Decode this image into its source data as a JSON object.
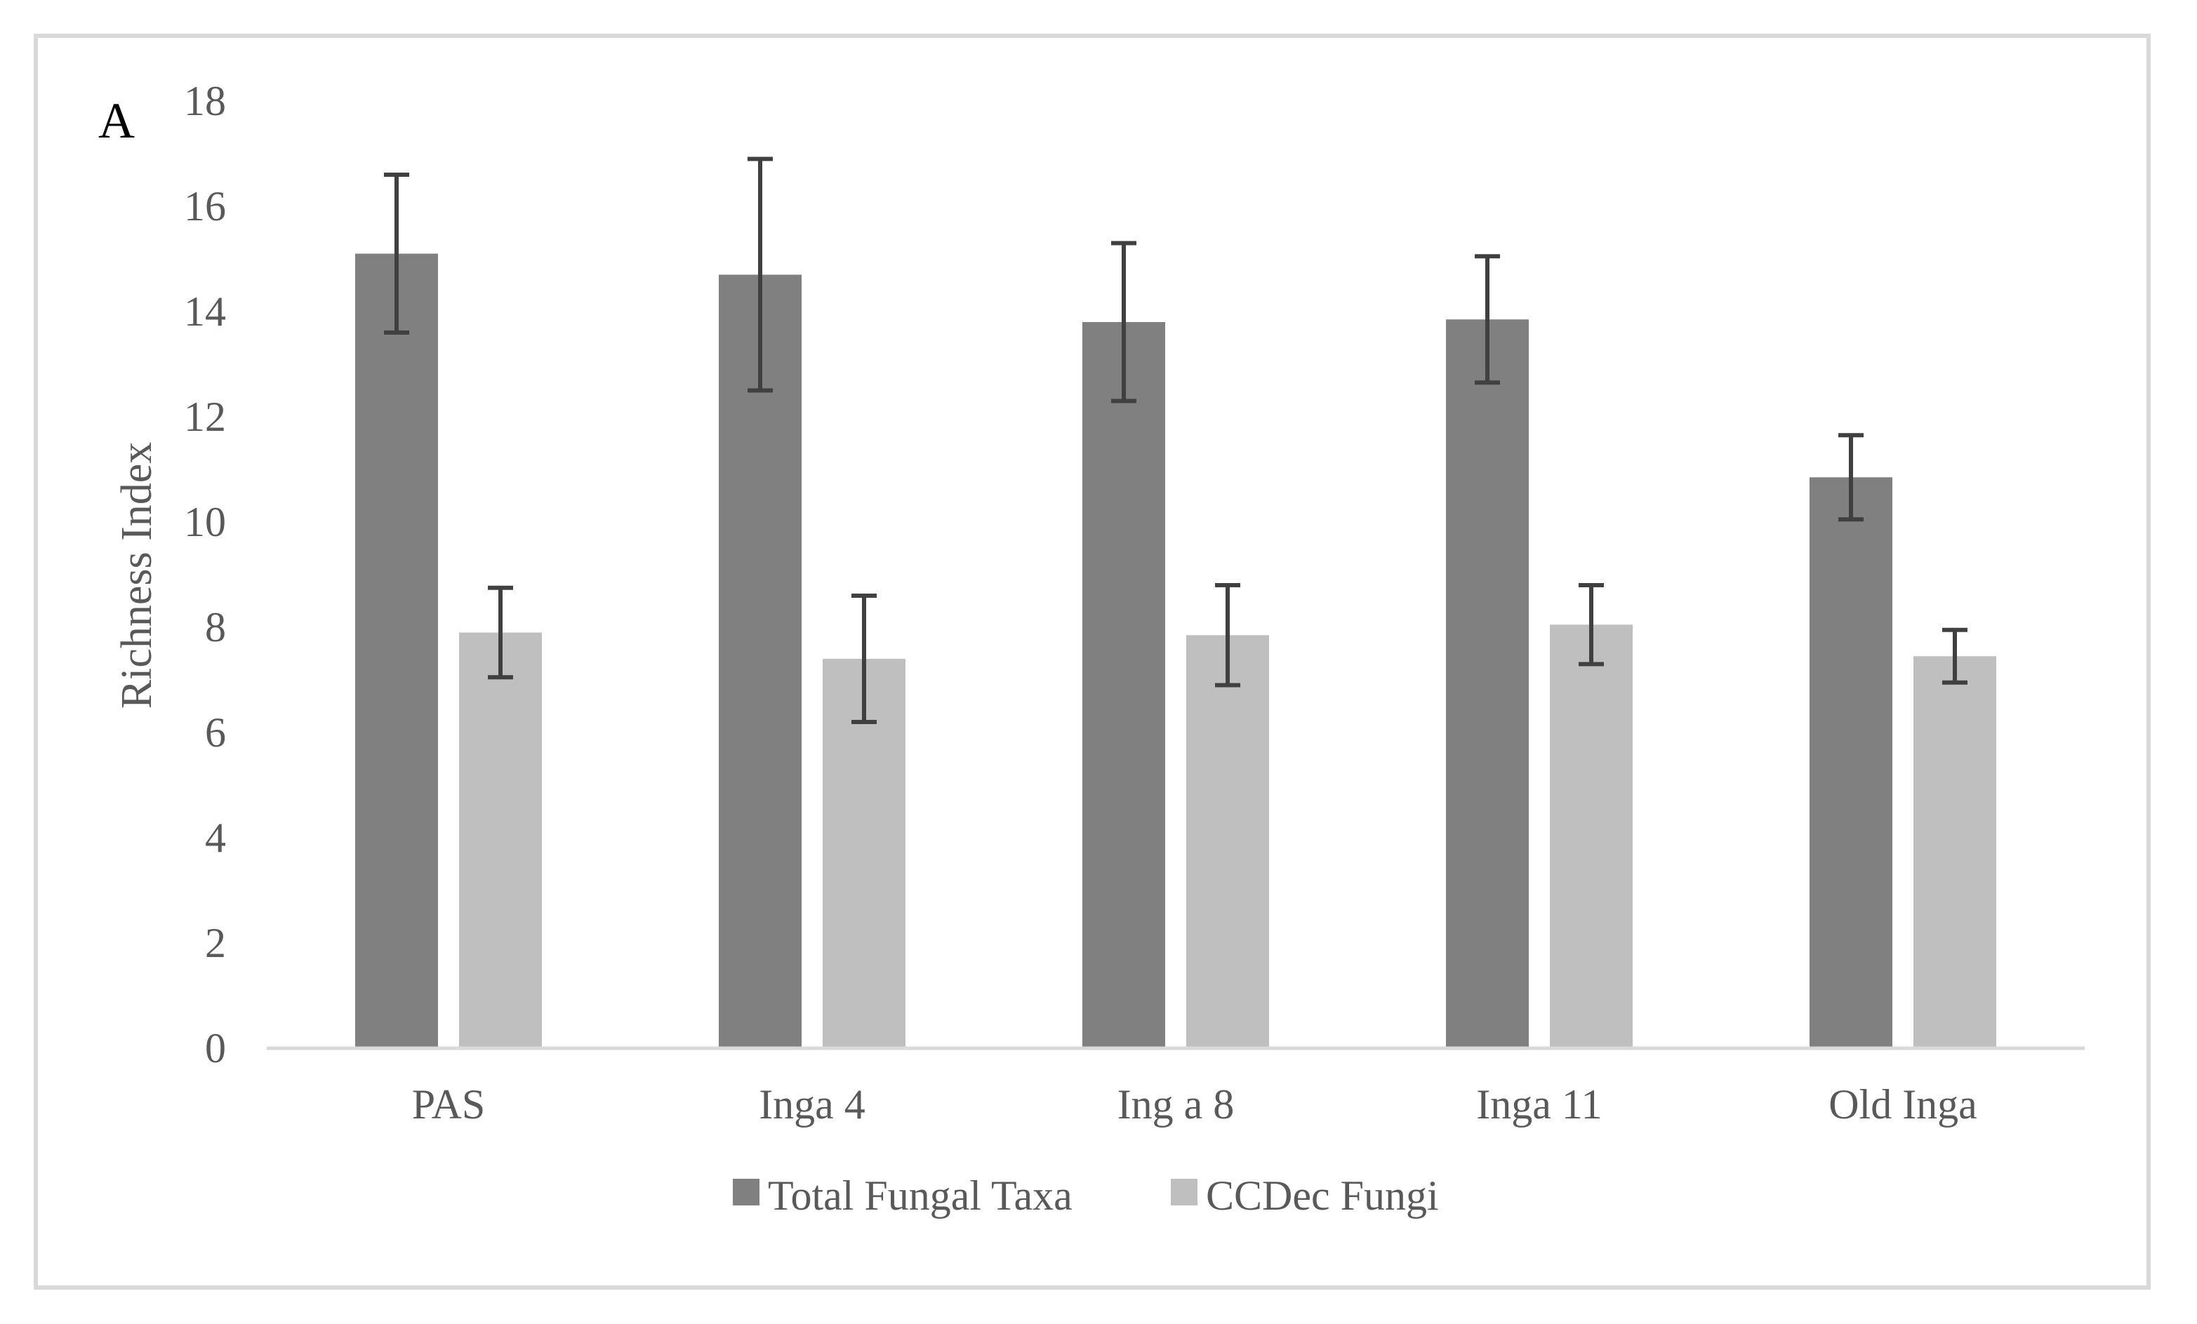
{
  "chart_data": {
    "type": "bar",
    "panel_label": "A",
    "ylabel": "Richness Index",
    "ylim": [
      0,
      18
    ],
    "yticks": [
      0,
      2,
      4,
      6,
      8,
      10,
      12,
      14,
      16,
      18
    ],
    "categories": [
      "PAS",
      "Inga 4",
      "Ing a 8",
      "Inga 11",
      "Old Inga"
    ],
    "series": [
      {
        "name": "Total Fungal Taxa",
        "color": "#808080",
        "values": [
          15.1,
          14.7,
          13.8,
          13.85,
          10.85
        ],
        "errors": [
          1.5,
          2.2,
          1.5,
          1.2,
          0.8
        ]
      },
      {
        "name": "CCDec Fungi",
        "color": "#bfbfbf",
        "values": [
          7.9,
          7.4,
          7.85,
          8.05,
          7.45
        ],
        "errors": [
          0.85,
          1.2,
          0.95,
          0.75,
          0.5
        ]
      }
    ],
    "error_bar_color": "#404040",
    "grid": false,
    "legend_position": "bottom"
  }
}
